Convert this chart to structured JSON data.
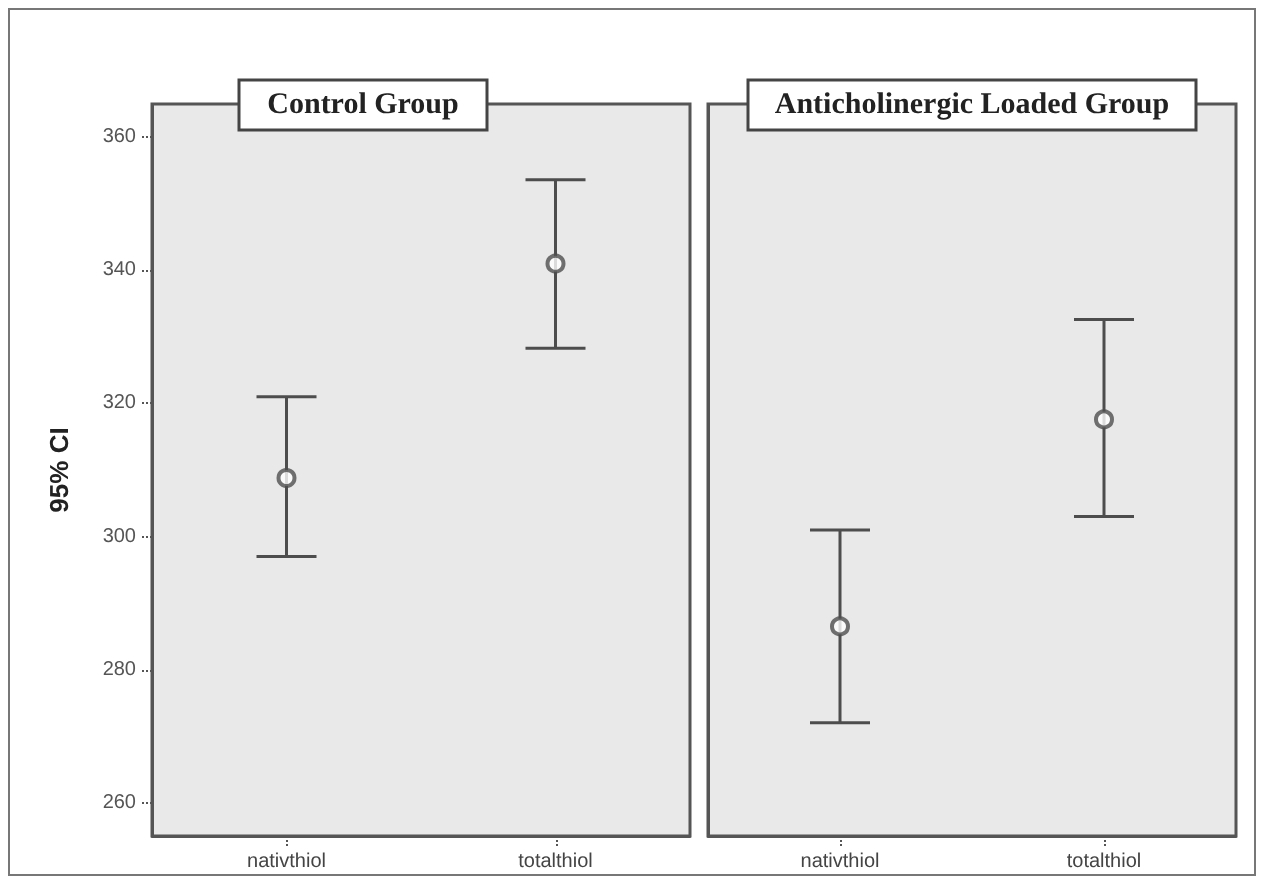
{
  "chart_data": [
    {
      "type": "scatter",
      "title": "Control Group",
      "ylabel": "95% CI",
      "categories": [
        "nativthiol",
        "totalthiol"
      ],
      "ylim": [
        255,
        365
      ],
      "yticks": [
        260,
        280,
        300,
        320,
        340,
        360
      ],
      "marker": "circle",
      "series": [
        {
          "color": "#4d4d4d",
          "values": [
            308.8,
            341
          ],
          "errors": [
            [
              297,
              321
            ],
            [
              328.3,
              353.6
            ]
          ]
        }
      ]
    },
    {
      "type": "scatter",
      "title": "Anticholinergic Loaded Group",
      "categories": [
        "nativthiol",
        "totalthiol"
      ],
      "ylim": [
        255,
        365
      ],
      "yticks": [
        260,
        280,
        300,
        320,
        340,
        360
      ],
      "marker": "circle",
      "tick_labels": "x",
      "series": [
        {
          "color": "#4d4d4d",
          "values": [
            286.5,
            317.6
          ],
          "errors": [
            [
              272,
              301
            ],
            [
              303,
              332.6
            ]
          ]
        }
      ]
    }
  ]
}
